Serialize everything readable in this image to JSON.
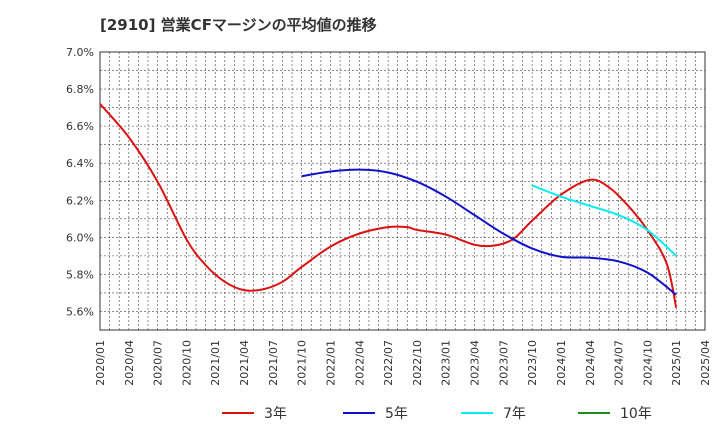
{
  "chart_data": {
    "type": "line",
    "title": "[2910]  営業CFマージンの平均値の推移",
    "xlabel": "",
    "ylabel": "",
    "x_ticks": [
      "2020/01",
      "2020/04",
      "2020/07",
      "2020/10",
      "2021/01",
      "2021/04",
      "2021/07",
      "2021/10",
      "2022/01",
      "2022/04",
      "2022/07",
      "2022/10",
      "2023/01",
      "2023/04",
      "2023/07",
      "2023/10",
      "2024/01",
      "2024/04",
      "2024/07",
      "2024/10",
      "2025/01",
      "2025/04"
    ],
    "y_ticks": [
      "5.6%",
      "5.8%",
      "6.0%",
      "6.2%",
      "6.4%",
      "6.6%",
      "6.8%",
      "7.0%"
    ],
    "ylim": [
      5.5,
      7.0
    ],
    "grid": true,
    "legend_position": "bottom",
    "series": [
      {
        "name": "3年",
        "color": "#dd1111",
        "points": [
          [
            "2020/01",
            6.72
          ],
          [
            "2020/04",
            6.54
          ],
          [
            "2020/07",
            6.3
          ],
          [
            "2020/10",
            5.99
          ],
          [
            "2020/12",
            5.85
          ],
          [
            "2021/02",
            5.76
          ],
          [
            "2021/04",
            5.715
          ],
          [
            "2021/06",
            5.72
          ],
          [
            "2021/08",
            5.76
          ],
          [
            "2021/10",
            5.84
          ],
          [
            "2022/01",
            5.95
          ],
          [
            "2022/04",
            6.02
          ],
          [
            "2022/07",
            6.055
          ],
          [
            "2022/09",
            6.055
          ],
          [
            "2022/10",
            6.04
          ],
          [
            "2023/01",
            6.015
          ],
          [
            "2023/04",
            5.96
          ],
          [
            "2023/06",
            5.955
          ],
          [
            "2023/08",
            5.99
          ],
          [
            "2023/10",
            6.09
          ],
          [
            "2024/01",
            6.23
          ],
          [
            "2024/04",
            6.31
          ],
          [
            "2024/06",
            6.27
          ],
          [
            "2024/08",
            6.17
          ],
          [
            "2024/10",
            6.04
          ],
          [
            "2024/12",
            5.86
          ],
          [
            "2025/01",
            5.62
          ]
        ]
      },
      {
        "name": "5年",
        "color": "#1111cc",
        "points": [
          [
            "2021/10",
            6.33
          ],
          [
            "2022/01",
            6.355
          ],
          [
            "2022/04",
            6.365
          ],
          [
            "2022/07",
            6.35
          ],
          [
            "2022/10",
            6.3
          ],
          [
            "2023/01",
            6.22
          ],
          [
            "2023/04",
            6.12
          ],
          [
            "2023/07",
            6.02
          ],
          [
            "2023/10",
            5.94
          ],
          [
            "2024/01",
            5.895
          ],
          [
            "2024/04",
            5.89
          ],
          [
            "2024/07",
            5.87
          ],
          [
            "2024/10",
            5.81
          ],
          [
            "2025/01",
            5.69
          ]
        ]
      },
      {
        "name": "7年",
        "color": "#00eeee",
        "points": [
          [
            "2023/10",
            6.28
          ],
          [
            "2024/01",
            6.22
          ],
          [
            "2024/04",
            6.17
          ],
          [
            "2024/07",
            6.12
          ],
          [
            "2024/10",
            6.04
          ],
          [
            "2025/01",
            5.9
          ]
        ]
      },
      {
        "name": "10年",
        "color": "#228822",
        "points": []
      }
    ]
  }
}
